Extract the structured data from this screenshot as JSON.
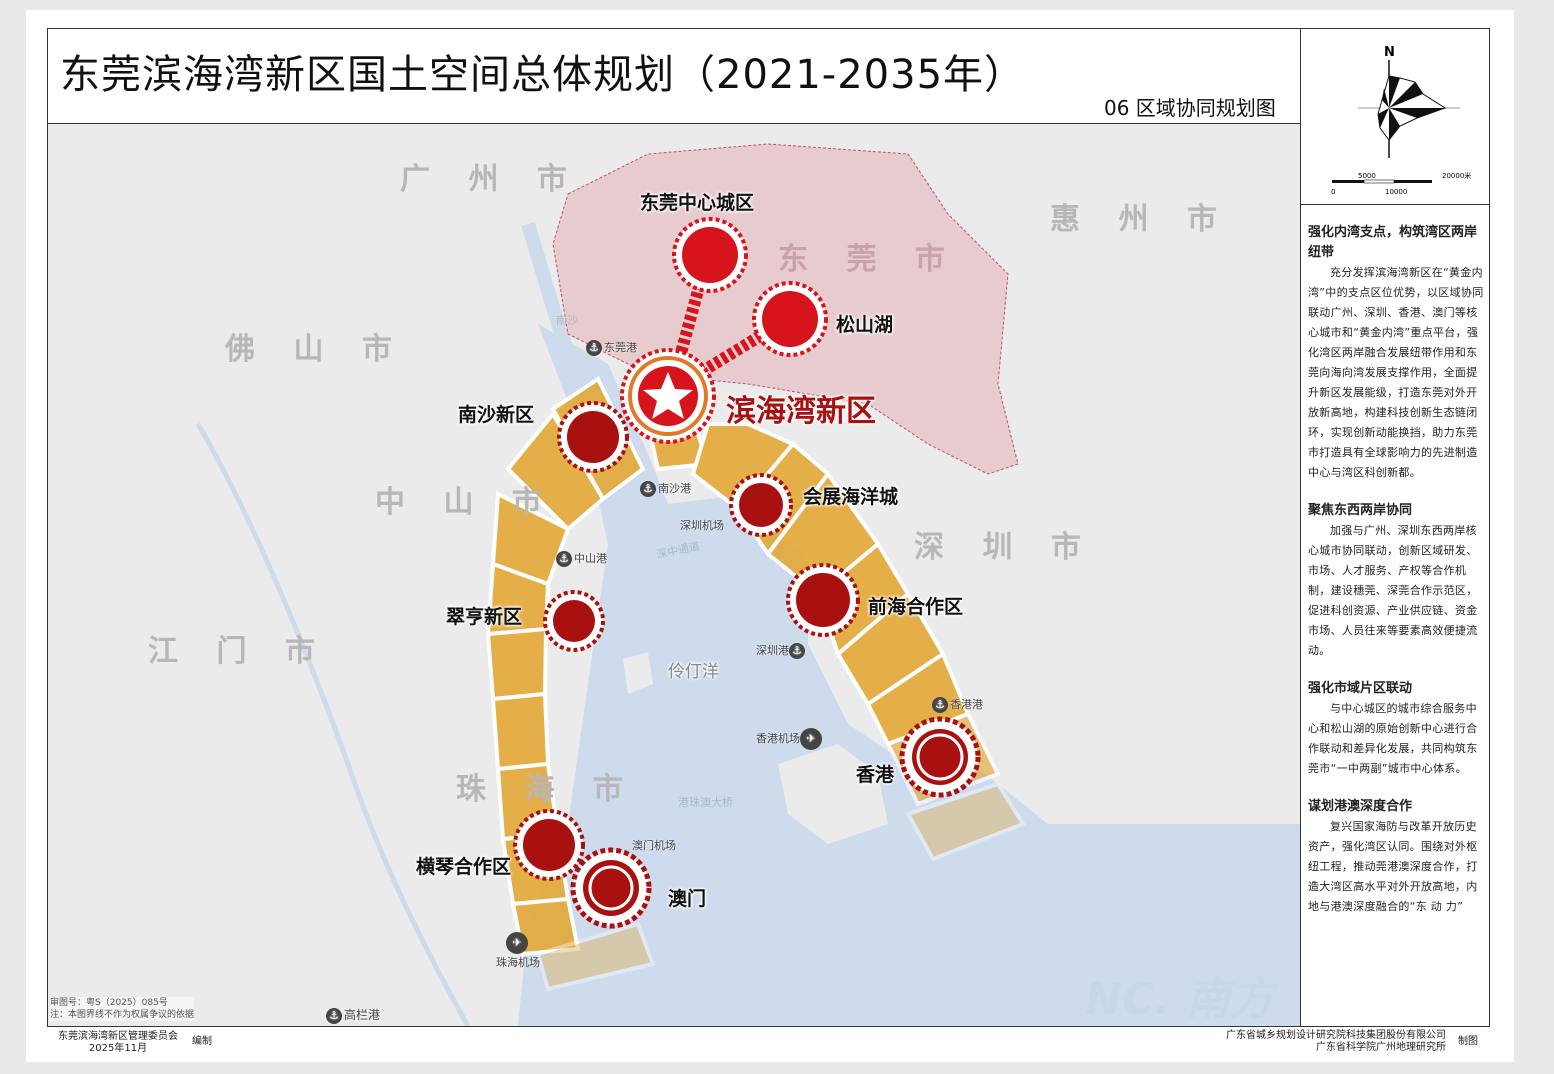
{
  "title": "东莞滨海湾新区国土空间总体规划（2021-2035年）",
  "subtitle": "06 区域协同规划图",
  "compass": {
    "north": "N",
    "scale_labels": [
      "0",
      "5000",
      "10000",
      "20000米"
    ]
  },
  "colors": {
    "core_red": "#d7141b",
    "node_dark_red": "#a8110f",
    "band_orange": "#e3a93a",
    "dongguan_pink": "#e8c6cb",
    "water": "#cddbed",
    "land": "#ebebeb"
  },
  "map": {
    "cities": [
      "广 州 市",
      "惠 州 市",
      "东 莞 市",
      "佛 山 市",
      "中 山 市",
      "深 圳 市",
      "江 门 市",
      "珠 海 市"
    ],
    "nodes": [
      "东莞中心城区",
      "松山湖",
      "滨海湾新区",
      "南沙新区",
      "会展海洋城",
      "翠亨新区",
      "前海合作区",
      "香港",
      "横琴合作区",
      "澳门"
    ],
    "ports": [
      "东莞港",
      "南沙港",
      "中山港",
      "深圳港",
      "香港港",
      "高栏港"
    ],
    "airports": [
      "深圳机场",
      "香港机场",
      "澳门机场",
      "珠海机场"
    ],
    "water_labels": [
      "伶仃洋",
      "深中通道",
      "港珠澳大桥",
      "南沙"
    ],
    "notes": [
      "审图号：粤S（2025）085号",
      "注：本图界线不作为权属争议的依据"
    ]
  },
  "panel": {
    "sections": [
      {
        "heading": "强化内湾支点，构筑湾区两岸纽带",
        "body": "充分发挥滨海湾新区在“黄金内湾”中的支点区位优势，以区域协同联动广州、深圳、香港、澳门等核心城市和“黄金内湾”重点平台，强化湾区两岸融合发展纽带作用和东莞向海向湾发展支撑作用，全面提升新区发展能级，打造东莞对外开放新高地，构建科技创新生态链闭环，实现创新动能换挡，助力东莞市打造具有全球影响力的先进制造中心与湾区科创新都。"
      },
      {
        "heading": "聚焦东西两岸协同",
        "body": "加强与广州、深圳东西两岸核心城市协同联动，创新区域研发、市场、人才服务、产权等合作机制，建设穗莞、深莞合作示范区，促进科创资源、产业供应链、资金市场、人员往来等要素高效便捷流动。"
      },
      {
        "heading": "强化市域片区联动",
        "body": "与中心城区的城市综合服务中心和松山湖的原始创新中心进行合作联动和差异化发展，共同构筑东莞市“一中两副”城市中心体系。"
      },
      {
        "heading": "谋划港澳深度合作",
        "body": "复兴国家海防与改革开放历史资产，强化湾区认同。围绕对外枢纽工程，推动莞港澳深度合作，打造大湾区高水平对外开放高地，内地与港澳深度融合的“东 动 力”"
      }
    ]
  },
  "footer": {
    "left_org": "东莞滨海湾新区管理委员会",
    "left_date": "2025年11月",
    "left_role": "编制",
    "right_org1": "广东省城乡规划设计研究院科技集团股份有限公司",
    "right_org2": "广东省科学院广州地理研究所",
    "right_role": "制图"
  },
  "watermark": "NC. 南方"
}
